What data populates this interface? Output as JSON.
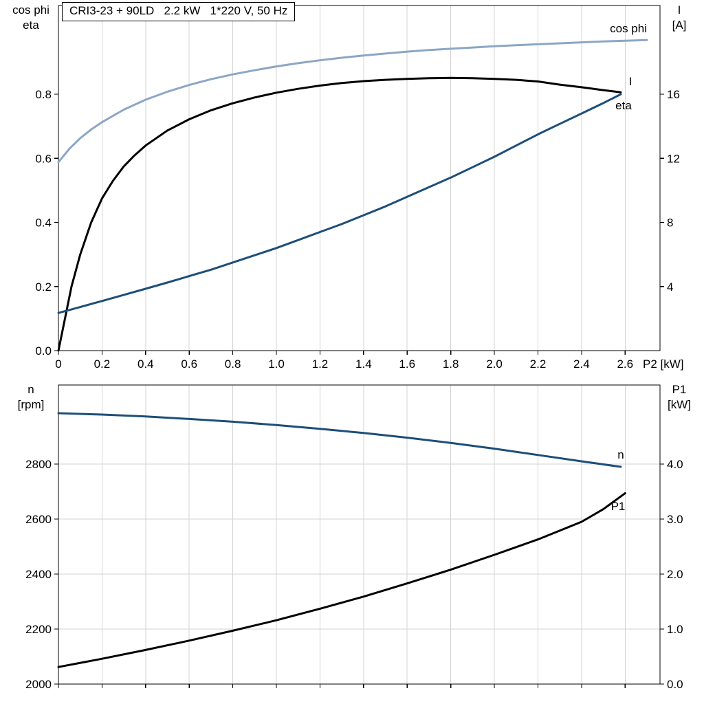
{
  "title_box": {
    "text": "CRI3-23 + 90LD   2.2 kW   1*220 V, 50 Hz"
  },
  "colors": {
    "cos_phi_curve": "#8ca6c5",
    "dark_blue_curve": "#1d4e79",
    "black_curve": "#000000",
    "grid": "#d3d3d3",
    "axis": "#000000",
    "background": "#ffffff"
  },
  "chart_data": [
    {
      "type": "line",
      "title": "CRI3-23 + 90LD   2.2 kW   1*220 V, 50 Hz",
      "x_axis": {
        "label": "P2 [kW]",
        "min": 0,
        "max": 2.76,
        "ticks": [
          [
            0,
            "0"
          ],
          [
            0.2,
            "0.2"
          ],
          [
            0.4,
            "0.4"
          ],
          [
            0.6,
            "0.6"
          ],
          [
            0.8,
            "0.8"
          ],
          [
            1,
            "1.0"
          ],
          [
            1.2,
            "1.2"
          ],
          [
            1.4,
            "1.4"
          ],
          [
            1.6,
            "1.6"
          ],
          [
            1.8,
            "1.8"
          ],
          [
            2,
            "2.0"
          ],
          [
            2.2,
            "2.2"
          ],
          [
            2.4,
            "2.4"
          ],
          [
            2.6,
            "2.6"
          ]
        ]
      },
      "left_axis": {
        "title_lines": [
          "cos phi",
          "eta"
        ],
        "min": 0,
        "max": 1.077,
        "ticks": [
          [
            0,
            "0.0"
          ],
          [
            0.2,
            "0.2"
          ],
          [
            0.4,
            "0.4"
          ],
          [
            0.6,
            "0.6"
          ],
          [
            0.8,
            "0.8"
          ]
        ]
      },
      "right_axis": {
        "title_lines": [
          "I",
          "[A]"
        ],
        "min": 0,
        "max": 21.54,
        "ticks": [
          [
            4,
            "4"
          ],
          [
            8,
            "8"
          ],
          [
            12,
            "12"
          ],
          [
            16,
            "16"
          ]
        ]
      },
      "grid": {
        "vertical": true,
        "horizontal": false
      },
      "series": [
        {
          "name": "cos phi",
          "label": "cos phi",
          "axis": "left",
          "color": "#8ca6c5",
          "points": [
            [
              0,
              0.588
            ],
            [
              0.05,
              0.63
            ],
            [
              0.1,
              0.663
            ],
            [
              0.15,
              0.69
            ],
            [
              0.2,
              0.713
            ],
            [
              0.3,
              0.752
            ],
            [
              0.4,
              0.783
            ],
            [
              0.5,
              0.808
            ],
            [
              0.6,
              0.829
            ],
            [
              0.7,
              0.847
            ],
            [
              0.8,
              0.862
            ],
            [
              0.9,
              0.875
            ],
            [
              1.0,
              0.887
            ],
            [
              1.1,
              0.897
            ],
            [
              1.2,
              0.906
            ],
            [
              1.3,
              0.914
            ],
            [
              1.4,
              0.921
            ],
            [
              1.5,
              0.927
            ],
            [
              1.6,
              0.933
            ],
            [
              1.7,
              0.938
            ],
            [
              1.8,
              0.942
            ],
            [
              1.9,
              0.946
            ],
            [
              2.0,
              0.95
            ],
            [
              2.1,
              0.953
            ],
            [
              2.2,
              0.956
            ],
            [
              2.3,
              0.959
            ],
            [
              2.4,
              0.962
            ],
            [
              2.5,
              0.965
            ],
            [
              2.6,
              0.967
            ],
            [
              2.7,
              0.969
            ]
          ]
        },
        {
          "name": "eta",
          "label": "eta",
          "axis": "left",
          "color": "#000000",
          "points": [
            [
              0,
              0
            ],
            [
              0.03,
              0.1
            ],
            [
              0.06,
              0.2
            ],
            [
              0.1,
              0.3
            ],
            [
              0.15,
              0.4
            ],
            [
              0.2,
              0.475
            ],
            [
              0.25,
              0.53
            ],
            [
              0.3,
              0.575
            ],
            [
              0.35,
              0.61
            ],
            [
              0.4,
              0.64
            ],
            [
              0.5,
              0.687
            ],
            [
              0.6,
              0.722
            ],
            [
              0.7,
              0.75
            ],
            [
              0.8,
              0.772
            ],
            [
              0.9,
              0.79
            ],
            [
              1.0,
              0.805
            ],
            [
              1.1,
              0.817
            ],
            [
              1.2,
              0.827
            ],
            [
              1.3,
              0.835
            ],
            [
              1.4,
              0.841
            ],
            [
              1.5,
              0.845
            ],
            [
              1.6,
              0.848
            ],
            [
              1.7,
              0.85
            ],
            [
              1.8,
              0.851
            ],
            [
              1.9,
              0.85
            ],
            [
              2.0,
              0.848
            ],
            [
              2.1,
              0.845
            ],
            [
              2.2,
              0.84
            ],
            [
              2.3,
              0.83
            ],
            [
              2.4,
              0.822
            ],
            [
              2.5,
              0.813
            ],
            [
              2.58,
              0.806
            ]
          ]
        },
        {
          "name": "I",
          "label": "I",
          "axis": "right",
          "color": "#1d4e79",
          "points": [
            [
              0,
              2.35
            ],
            [
              0.1,
              2.72
            ],
            [
              0.2,
              3.1
            ],
            [
              0.3,
              3.48
            ],
            [
              0.4,
              3.86
            ],
            [
              0.5,
              4.25
            ],
            [
              0.6,
              4.65
            ],
            [
              0.7,
              5.05
            ],
            [
              0.8,
              5.5
            ],
            [
              0.9,
              5.95
            ],
            [
              1.0,
              6.4
            ],
            [
              1.1,
              6.9
            ],
            [
              1.2,
              7.4
            ],
            [
              1.3,
              7.9
            ],
            [
              1.4,
              8.45
            ],
            [
              1.5,
              9.0
            ],
            [
              1.6,
              9.6
            ],
            [
              1.7,
              10.2
            ],
            [
              1.8,
              10.8
            ],
            [
              1.9,
              11.45
            ],
            [
              2.0,
              12.1
            ],
            [
              2.1,
              12.8
            ],
            [
              2.2,
              13.5
            ],
            [
              2.3,
              14.15
            ],
            [
              2.4,
              14.8
            ],
            [
              2.5,
              15.45
            ],
            [
              2.58,
              16.0
            ]
          ]
        }
      ]
    },
    {
      "type": "line",
      "x_axis": {
        "label": "",
        "min": 0,
        "max": 2.76,
        "ticks": [
          [
            0,
            ""
          ],
          [
            0.2,
            ""
          ],
          [
            0.4,
            ""
          ],
          [
            0.6,
            ""
          ],
          [
            0.8,
            ""
          ],
          [
            1,
            ""
          ],
          [
            1.2,
            ""
          ],
          [
            1.4,
            ""
          ],
          [
            1.6,
            ""
          ],
          [
            1.8,
            ""
          ],
          [
            2,
            ""
          ],
          [
            2.2,
            ""
          ],
          [
            2.4,
            ""
          ],
          [
            2.6,
            ""
          ]
        ]
      },
      "left_axis": {
        "title_lines": [
          "n",
          "[rpm]"
        ],
        "min": 2000,
        "max": 3087.5,
        "ticks": [
          [
            2000,
            "2000"
          ],
          [
            2200,
            "2200"
          ],
          [
            2400,
            "2400"
          ],
          [
            2600,
            "2600"
          ],
          [
            2800,
            "2800"
          ]
        ]
      },
      "right_axis": {
        "title_lines": [
          "P1",
          "[kW]"
        ],
        "min": 0,
        "max": 5.4375,
        "ticks": [
          [
            0,
            "0.0"
          ],
          [
            1,
            "1.0"
          ],
          [
            2,
            "2.0"
          ],
          [
            3,
            "3.0"
          ],
          [
            4,
            "4.0"
          ]
        ]
      },
      "grid": {
        "vertical": true,
        "horizontal": true
      },
      "series": [
        {
          "name": "n",
          "label": "n",
          "axis": "left",
          "color": "#1d4e79",
          "points": [
            [
              0,
              2985
            ],
            [
              0.2,
              2980
            ],
            [
              0.4,
              2973
            ],
            [
              0.6,
              2964
            ],
            [
              0.8,
              2954
            ],
            [
              1.0,
              2942
            ],
            [
              1.2,
              2928
            ],
            [
              1.4,
              2913
            ],
            [
              1.6,
              2896
            ],
            [
              1.8,
              2877
            ],
            [
              2.0,
              2856
            ],
            [
              2.2,
              2833
            ],
            [
              2.4,
              2810
            ],
            [
              2.58,
              2790
            ]
          ]
        },
        {
          "name": "P1",
          "label": "P1",
          "axis": "right",
          "color": "#000000",
          "points": [
            [
              0,
              0.31
            ],
            [
              0.2,
              0.46
            ],
            [
              0.4,
              0.62
            ],
            [
              0.6,
              0.79
            ],
            [
              0.8,
              0.97
            ],
            [
              1.0,
              1.16
            ],
            [
              1.2,
              1.37
            ],
            [
              1.4,
              1.59
            ],
            [
              1.6,
              1.83
            ],
            [
              1.8,
              2.08
            ],
            [
              2.0,
              2.35
            ],
            [
              2.2,
              2.63
            ],
            [
              2.4,
              2.95
            ],
            [
              2.5,
              3.18
            ],
            [
              2.6,
              3.47
            ]
          ]
        }
      ]
    }
  ]
}
